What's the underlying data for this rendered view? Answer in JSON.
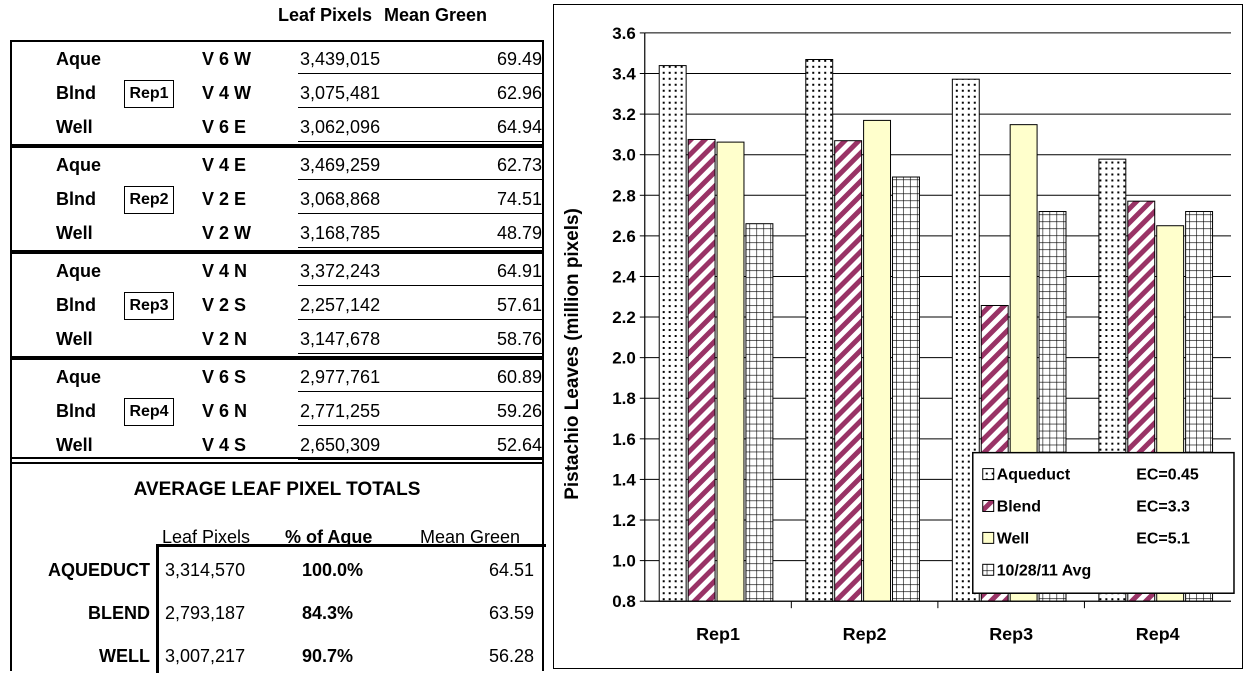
{
  "table": {
    "header": {
      "leaf_pixels": "Leaf Pixels",
      "mean_green": "Mean Green"
    },
    "groups": [
      {
        "rep": "Rep1",
        "rows": [
          {
            "source": "Aque",
            "tree": "V 6 W",
            "leaf_pixels": "3,439,015",
            "mean_green": "69.49"
          },
          {
            "source": "Blnd",
            "tree": "V 4 W",
            "leaf_pixels": "3,075,481",
            "mean_green": "62.96"
          },
          {
            "source": "Well",
            "tree": "V 6 E",
            "leaf_pixels": "3,062,096",
            "mean_green": "64.94"
          }
        ]
      },
      {
        "rep": "Rep2",
        "rows": [
          {
            "source": "Aque",
            "tree": "V 4 E",
            "leaf_pixels": "3,469,259",
            "mean_green": "62.73"
          },
          {
            "source": "Blnd",
            "tree": "V 2 E",
            "leaf_pixels": "3,068,868",
            "mean_green": "74.51"
          },
          {
            "source": "Well",
            "tree": "V 2 W",
            "leaf_pixels": "3,168,785",
            "mean_green": "48.79"
          }
        ]
      },
      {
        "rep": "Rep3",
        "rows": [
          {
            "source": "Aque",
            "tree": "V 4 N",
            "leaf_pixels": "3,372,243",
            "mean_green": "64.91"
          },
          {
            "source": "Blnd",
            "tree": "V 2 S",
            "leaf_pixels": "2,257,142",
            "mean_green": "57.61"
          },
          {
            "source": "Well",
            "tree": "V 2 N",
            "leaf_pixels": "3,147,678",
            "mean_green": "58.76"
          }
        ]
      },
      {
        "rep": "Rep4",
        "rows": [
          {
            "source": "Aque",
            "tree": "V 6 S",
            "leaf_pixels": "2,977,761",
            "mean_green": "60.89"
          },
          {
            "source": "Blnd",
            "tree": "V 6 N",
            "leaf_pixels": "2,771,255",
            "mean_green": "59.26"
          },
          {
            "source": "Well",
            "tree": "V 4 S",
            "leaf_pixels": "2,650,309",
            "mean_green": "52.64"
          }
        ]
      }
    ]
  },
  "averages": {
    "title": "AVERAGE LEAF PIXEL TOTALS",
    "col_leaf_pixels": "Leaf Pixels",
    "col_pct": "% of Aque",
    "col_mean_green": "Mean Green",
    "rows": [
      {
        "name": "AQUEDUCT",
        "leaf_pixels": "3,314,570",
        "pct": "100.0%",
        "mean_green": "64.51"
      },
      {
        "name": "BLEND",
        "leaf_pixels": "2,793,187",
        "pct": "84.3%",
        "mean_green": "63.59"
      },
      {
        "name": "WELL",
        "leaf_pixels": "3,007,217",
        "pct": "90.7%",
        "mean_green": "56.28"
      }
    ]
  },
  "chart_data": {
    "type": "bar",
    "categories": [
      "Rep1",
      "Rep2",
      "Rep3",
      "Rep4"
    ],
    "ylabel": "Pistachio Leaves (million pixels)",
    "ylim": [
      0.8,
      3.6
    ],
    "yticks": [
      "0.8",
      "1.0",
      "1.2",
      "1.4",
      "1.6",
      "1.8",
      "2.0",
      "2.2",
      "2.4",
      "2.6",
      "2.8",
      "3.0",
      "3.2",
      "3.4",
      "3.6"
    ],
    "grid": true,
    "legend_position": "bottom-right",
    "series": [
      {
        "name": "Aqueduct",
        "legend": "Aqueduct  EC=0.45",
        "pattern": "dots",
        "values": [
          3.439,
          3.469,
          3.372,
          2.978
        ]
      },
      {
        "name": "Blend",
        "legend": "Blend        EC=3.3",
        "pattern": "stripes",
        "color": "#993366",
        "values": [
          3.075,
          3.069,
          2.257,
          2.771
        ]
      },
      {
        "name": "Well",
        "legend": "Well          EC=5.1",
        "pattern": "solid",
        "color": "#FFFFCC",
        "values": [
          3.062,
          3.169,
          3.148,
          2.65
        ]
      },
      {
        "name": "10/28/11 Avg",
        "legend": "10/28/11 Avg",
        "pattern": "grid",
        "values": [
          2.66,
          2.89,
          2.72,
          2.72
        ]
      }
    ]
  }
}
